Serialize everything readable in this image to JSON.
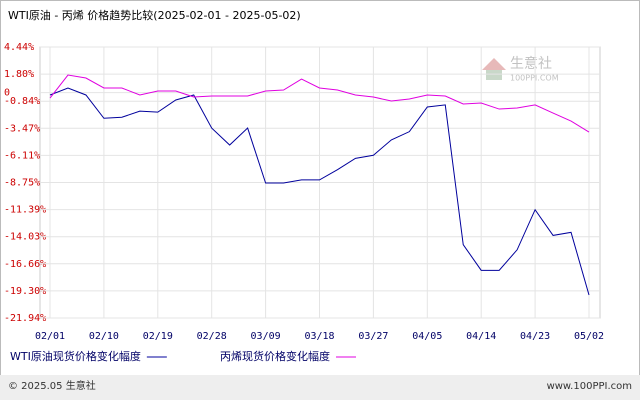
{
  "chart_data": {
    "type": "line",
    "title": "WTI原油 - 丙烯 价格趋势比较(2025-02-01 - 2025-05-02)",
    "categories": [
      "02/01",
      null,
      null,
      "02/10",
      null,
      null,
      "02/19",
      null,
      null,
      "02/28",
      null,
      null,
      "03/09",
      null,
      null,
      "03/18",
      null,
      null,
      "03/27",
      null,
      null,
      "04/05",
      null,
      null,
      "04/14",
      null,
      null,
      "04/23",
      null,
      null,
      "05/02"
    ],
    "series": [
      {
        "name": "WTI原油现货价格变化幅度",
        "color": "#00009c",
        "values": [
          -0.23,
          0.45,
          -0.23,
          -2.5,
          -2.4,
          -1.8,
          -1.9,
          -0.72,
          -0.23,
          -3.45,
          -5.1,
          -3.45,
          -8.8,
          -8.8,
          -8.5,
          -8.5,
          -7.5,
          -6.4,
          -6.1,
          -4.6,
          -3.8,
          -1.4,
          -1.2,
          -14.8,
          -17.3,
          -17.3,
          -15.3,
          -11.4,
          -13.9,
          -13.6,
          -19.7
        ]
      },
      {
        "name": "丙烯现货价格变化幅度",
        "color": "#e000e0",
        "values": [
          -0.53,
          1.71,
          1.42,
          0.45,
          0.45,
          -0.23,
          0.16,
          0.16,
          -0.43,
          -0.33,
          -0.33,
          -0.33,
          0.16,
          0.25,
          1.32,
          0.45,
          0.25,
          -0.23,
          -0.43,
          -0.82,
          -0.62,
          -0.23,
          -0.33,
          -1.11,
          -1.01,
          -1.6,
          -1.5,
          -1.2,
          -1.99,
          -2.77,
          -3.84
        ]
      }
    ],
    "ylim": [
      -21.94,
      4.44
    ],
    "yticks": [
      {
        "value": 4.44,
        "label": "4.44%"
      },
      {
        "value": 1.8,
        "label": "1.80%"
      },
      {
        "value": 0,
        "label": "0"
      },
      {
        "value": -0.84,
        "label": "-0.84%"
      },
      {
        "value": -3.47,
        "label": "-3.47%"
      },
      {
        "value": -6.11,
        "label": "-6.11%"
      },
      {
        "value": -8.75,
        "label": "-8.75%"
      },
      {
        "value": -11.39,
        "label": "-11.39%"
      },
      {
        "value": -14.03,
        "label": "-14.03%"
      },
      {
        "value": -16.66,
        "label": "-16.66%"
      },
      {
        "value": -19.3,
        "label": "-19.30%"
      },
      {
        "value": -21.94,
        "label": "-21.94%"
      }
    ],
    "grid": true,
    "watermark": {
      "name": "生意社",
      "url": "100PPI.COM"
    },
    "footer": {
      "left": "© 2025.05 生意社",
      "right": "www.100PPI.com"
    }
  }
}
